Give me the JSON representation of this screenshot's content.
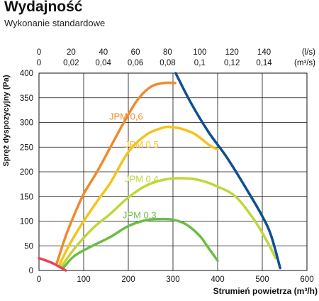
{
  "header": {
    "title": "Wydajność",
    "subtitle": "Wykonanie standardowe"
  },
  "chart_data": {
    "type": "line",
    "xlabel": "Strumień powietrza (m³/h)",
    "ylabel": "Spręż dyspozycyjny (Pa)",
    "xlim": [
      0,
      600
    ],
    "ylim": [
      0,
      400
    ],
    "x_ticks": [
      0,
      100,
      200,
      300,
      400,
      500,
      600
    ],
    "y_ticks": [
      0,
      50,
      100,
      150,
      200,
      250,
      300,
      350,
      400
    ],
    "top_axis_ls": {
      "unit": "(l/s)",
      "ticks": [
        {
          "value": 0,
          "label": "0"
        },
        {
          "value": 20,
          "label": "20"
        },
        {
          "value": 40,
          "label": "40"
        },
        {
          "value": 60,
          "label": "60"
        },
        {
          "value": 80,
          "label": "80"
        },
        {
          "value": 100,
          "label": "100"
        },
        {
          "value": 120,
          "label": "120"
        },
        {
          "value": 140,
          "label": "140"
        }
      ]
    },
    "top_axis_m3s": {
      "unit": "(m³/s)",
      "ticks": [
        {
          "value": 0,
          "label": "0"
        },
        {
          "value": 0.02,
          "label": "0,02"
        },
        {
          "value": 0.04,
          "label": "0,04"
        },
        {
          "value": 0.06,
          "label": "0,06"
        },
        {
          "value": 0.08,
          "label": "0,08"
        },
        {
          "value": 0.1,
          "label": "0,1"
        },
        {
          "value": 0.12,
          "label": "0,12"
        },
        {
          "value": 0.14,
          "label": "0,14"
        }
      ]
    },
    "grid": true,
    "series": [
      {
        "name": "JPM 0,6",
        "color": "#f08a2b",
        "x": [
          40,
          60,
          80,
          100,
          130,
          160,
          190,
          220,
          250,
          280,
          305
        ],
        "y": [
          15,
          70,
          115,
          155,
          200,
          250,
          300,
          345,
          372,
          380,
          380
        ]
      },
      {
        "name": "JPM 0,5",
        "color": "#f5c31c",
        "x": [
          45,
          70,
          100,
          130,
          160,
          200,
          240,
          280,
          300,
          320,
          350,
          380,
          400
        ],
        "y": [
          10,
          55,
          100,
          140,
          178,
          240,
          275,
          290,
          290,
          287,
          276,
          255,
          245
        ]
      },
      {
        "name": "JPM 0,4",
        "color": "#c0d63a",
        "x": [
          50,
          80,
          120,
          160,
          200,
          240,
          280,
          320,
          360,
          400,
          440,
          480,
          510,
          530
        ],
        "y": [
          8,
          45,
          85,
          115,
          148,
          172,
          184,
          187,
          183,
          170,
          150,
          105,
          60,
          25
        ]
      },
      {
        "name": "JPM 0,3",
        "color": "#6bbd45",
        "x": [
          55,
          80,
          120,
          160,
          200,
          240,
          270,
          300,
          330,
          360,
          380,
          400
        ],
        "y": [
          6,
          30,
          50,
          68,
          90,
          102,
          104,
          103,
          93,
          70,
          45,
          20
        ]
      },
      {
        "name": "",
        "color": "#0f4e93",
        "x": [
          306,
          340,
          380,
          420,
          460,
          500,
          520,
          540
        ],
        "y": [
          400,
          340,
          280,
          230,
          172,
          110,
          70,
          5
        ]
      },
      {
        "name": "",
        "color": "#e8415c",
        "x": [
          0,
          30,
          60
        ],
        "y": [
          25,
          15,
          0
        ]
      }
    ],
    "annotations": [
      "JPM 0,6",
      "JPM 0,5",
      "JPM 0,4",
      "JPM 0,3"
    ]
  }
}
